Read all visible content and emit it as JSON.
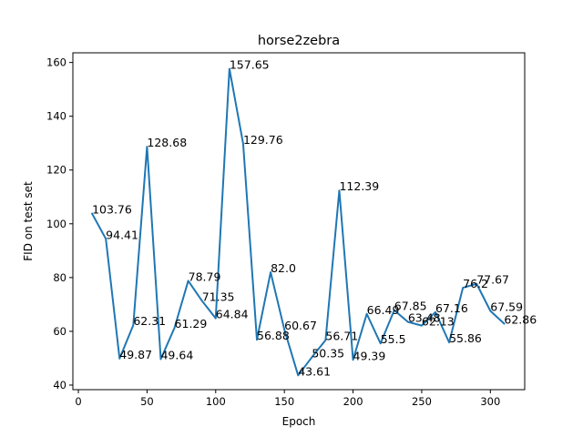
{
  "chart_data": {
    "type": "line",
    "title": "horse2zebra",
    "xlabel": "Epoch",
    "ylabel": "FID on test set",
    "xlim": [
      -4,
      325
    ],
    "ylim": [
      38.3,
      163.6
    ],
    "xticks": [
      0,
      50,
      100,
      150,
      200,
      250,
      300
    ],
    "yticks": [
      40,
      60,
      80,
      100,
      120,
      140,
      160
    ],
    "grid": false,
    "line_color": "#1f77b4",
    "x": [
      10,
      20,
      30,
      40,
      50,
      60,
      70,
      80,
      90,
      100,
      110,
      120,
      130,
      140,
      150,
      160,
      170,
      180,
      190,
      200,
      210,
      220,
      230,
      240,
      250,
      260,
      270,
      280,
      290,
      300,
      310
    ],
    "y": [
      103.76,
      94.41,
      49.87,
      62.31,
      128.68,
      49.64,
      61.29,
      78.79,
      71.35,
      64.84,
      157.65,
      129.76,
      56.88,
      82.0,
      60.67,
      43.61,
      50.35,
      56.71,
      112.39,
      49.39,
      66.49,
      55.5,
      67.85,
      63.48,
      62.13,
      67.16,
      55.86,
      76.2,
      77.67,
      67.59,
      62.86
    ],
    "labels": [
      "103.76",
      "94.41",
      "49.87",
      "62.31",
      "128.68",
      "49.64",
      "61.29",
      "78.79",
      "71.35",
      "64.84",
      "157.65",
      "129.76",
      "56.88",
      "82.0",
      "60.67",
      "43.61",
      "50.35",
      "56.71",
      "112.39",
      "49.39",
      "66.49",
      "55.5",
      "67.85",
      "63.48",
      "62.13",
      "67.16",
      "55.86",
      "76.2",
      "77.67",
      "67.59",
      "62.86"
    ]
  }
}
